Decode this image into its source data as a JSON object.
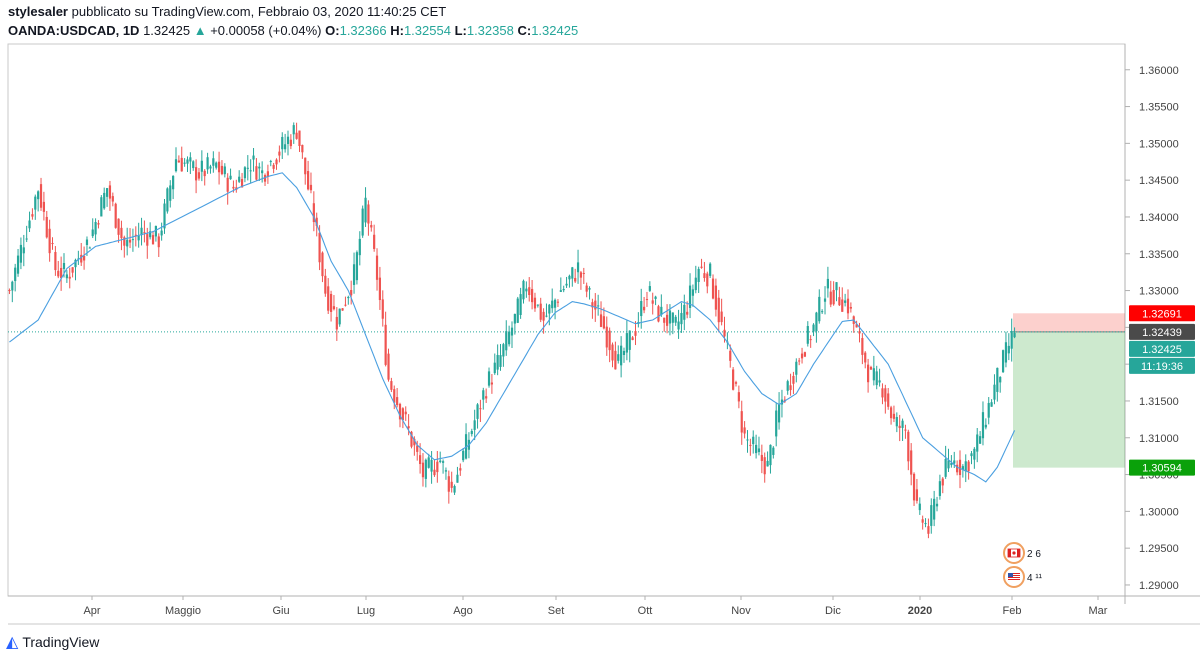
{
  "header": {
    "author": "stylesaler",
    "published_text": "pubblicato su TradingView.com, Febbraio 03, 2020 11:40:25 CET",
    "symbol": "OANDA:USDCAD, 1D",
    "last": "1.32425",
    "change": "+0.00058 (+0.04%)",
    "o_label": "O:",
    "o_value": "1.32366",
    "h_label": "H:",
    "h_value": "1.32554",
    "l_label": "L:",
    "l_value": "1.32358",
    "c_label": "C:",
    "c_value": "1.32425"
  },
  "footer": {
    "brand": "TradingView",
    "logo_icon": "tradingview-logo-icon"
  },
  "colors": {
    "up": "#26a69a",
    "down": "#ef5350",
    "ma": "#4a9fe0",
    "stop": "#ff0000",
    "target": "#0aa10a",
    "grid": "#e6e6e6"
  },
  "chart_data": {
    "type": "candlestick",
    "y_axis_ticks": [
      "1.36000",
      "1.35500",
      "1.35000",
      "1.34500",
      "1.34000",
      "1.33500",
      "1.33000",
      "1.32500",
      "1.32000",
      "1.31500",
      "1.31000",
      "1.30500",
      "1.30000",
      "1.29500",
      "1.29000"
    ],
    "ylim": [
      1.2885,
      1.3635
    ],
    "x_axis_ticks": [
      "Apr",
      "Maggio",
      "Giu",
      "Lug",
      "Ago",
      "Set",
      "Ott",
      "Nov",
      "Dic",
      "2020",
      "Feb",
      "Mar"
    ],
    "x_tick_bold": "2020",
    "price_path": [
      [
        0,
        1.33
      ],
      [
        10,
        1.344
      ],
      [
        16,
        1.333
      ],
      [
        20,
        1.332
      ],
      [
        28,
        1.337
      ],
      [
        34,
        1.344
      ],
      [
        40,
        1.336
      ],
      [
        46,
        1.338
      ],
      [
        52,
        1.337
      ],
      [
        58,
        1.348
      ],
      [
        66,
        1.346
      ],
      [
        72,
        1.347
      ],
      [
        78,
        1.344
      ],
      [
        84,
        1.3475
      ],
      [
        88,
        1.346
      ],
      [
        94,
        1.349
      ],
      [
        100,
        1.352
      ],
      [
        106,
        1.34
      ],
      [
        110,
        1.33
      ],
      [
        114,
        1.326
      ],
      [
        120,
        1.332
      ],
      [
        124,
        1.342
      ],
      [
        128,
        1.332
      ],
      [
        132,
        1.318
      ],
      [
        138,
        1.312
      ],
      [
        144,
        1.305
      ],
      [
        150,
        1.307
      ],
      [
        154,
        1.303
      ],
      [
        160,
        1.31
      ],
      [
        166,
        1.317
      ],
      [
        170,
        1.32
      ],
      [
        176,
        1.326
      ],
      [
        180,
        1.331
      ],
      [
        186,
        1.326
      ],
      [
        192,
        1.33
      ],
      [
        198,
        1.333
      ],
      [
        202,
        1.329
      ],
      [
        206,
        1.326
      ],
      [
        212,
        1.32
      ],
      [
        218,
        1.325
      ],
      [
        222,
        1.33
      ],
      [
        226,
        1.327
      ],
      [
        232,
        1.325
      ],
      [
        236,
        1.328
      ],
      [
        240,
        1.333
      ],
      [
        244,
        1.332
      ],
      [
        248,
        1.325
      ],
      [
        252,
        1.318
      ],
      [
        256,
        1.31
      ],
      [
        260,
        1.308
      ],
      [
        264,
        1.306
      ],
      [
        268,
        1.314
      ],
      [
        272,
        1.318
      ],
      [
        276,
        1.322
      ],
      [
        280,
        1.325
      ],
      [
        284,
        1.33
      ],
      [
        288,
        1.3295
      ],
      [
        292,
        1.328
      ],
      [
        296,
        1.323
      ],
      [
        300,
        1.318
      ],
      [
        304,
        1.317
      ],
      [
        308,
        1.312
      ],
      [
        312,
        1.311
      ],
      [
        316,
        1.3
      ],
      [
        320,
        1.2975
      ],
      [
        324,
        1.304
      ],
      [
        328,
        1.307
      ],
      [
        332,
        1.306
      ],
      [
        336,
        1.308
      ],
      [
        340,
        1.313
      ],
      [
        344,
        1.318
      ],
      [
        348,
        1.3225
      ],
      [
        350,
        1.3242
      ]
    ],
    "moving_average_path": [
      [
        0,
        1.323
      ],
      [
        10,
        1.326
      ],
      [
        20,
        1.333
      ],
      [
        30,
        1.336
      ],
      [
        40,
        1.337
      ],
      [
        50,
        1.338
      ],
      [
        60,
        1.34
      ],
      [
        70,
        1.342
      ],
      [
        80,
        1.344
      ],
      [
        90,
        1.3455
      ],
      [
        95,
        1.346
      ],
      [
        100,
        1.344
      ],
      [
        106,
        1.34
      ],
      [
        112,
        1.334
      ],
      [
        118,
        1.33
      ],
      [
        124,
        1.324
      ],
      [
        130,
        1.318
      ],
      [
        136,
        1.313
      ],
      [
        142,
        1.309
      ],
      [
        148,
        1.307
      ],
      [
        154,
        1.3075
      ],
      [
        160,
        1.309
      ],
      [
        166,
        1.312
      ],
      [
        172,
        1.316
      ],
      [
        178,
        1.32
      ],
      [
        184,
        1.324
      ],
      [
        190,
        1.327
      ],
      [
        196,
        1.3285
      ],
      [
        200,
        1.3282
      ],
      [
        206,
        1.3275
      ],
      [
        212,
        1.3265
      ],
      [
        218,
        1.3255
      ],
      [
        224,
        1.326
      ],
      [
        230,
        1.3275
      ],
      [
        234,
        1.3285
      ],
      [
        238,
        1.328
      ],
      [
        244,
        1.326
      ],
      [
        250,
        1.323
      ],
      [
        256,
        1.319
      ],
      [
        262,
        1.316
      ],
      [
        268,
        1.3145
      ],
      [
        274,
        1.316
      ],
      [
        280,
        1.32
      ],
      [
        286,
        1.3235
      ],
      [
        290,
        1.3258
      ],
      [
        294,
        1.326
      ],
      [
        300,
        1.323
      ],
      [
        306,
        1.32
      ],
      [
        312,
        1.315
      ],
      [
        318,
        1.31
      ],
      [
        324,
        1.308
      ],
      [
        330,
        1.306
      ],
      [
        336,
        1.305
      ],
      [
        340,
        1.304
      ],
      [
        344,
        1.306
      ],
      [
        350,
        1.311
      ]
    ],
    "current_price_line": 1.32439,
    "labels": {
      "stop": "1.32691",
      "entry": "1.32439",
      "last": "1.32425",
      "countdown": "11:19:36",
      "target": "1.30594"
    },
    "position": {
      "type": "short",
      "entry": 1.32439,
      "stop": 1.32691,
      "target": 1.30594
    },
    "event_badges": [
      {
        "flag": "canada-flag-icon",
        "text": "2 6"
      },
      {
        "flag": "usa-flag-icon",
        "text": "4 ¹¹"
      }
    ],
    "grid": true,
    "legend": "none"
  }
}
